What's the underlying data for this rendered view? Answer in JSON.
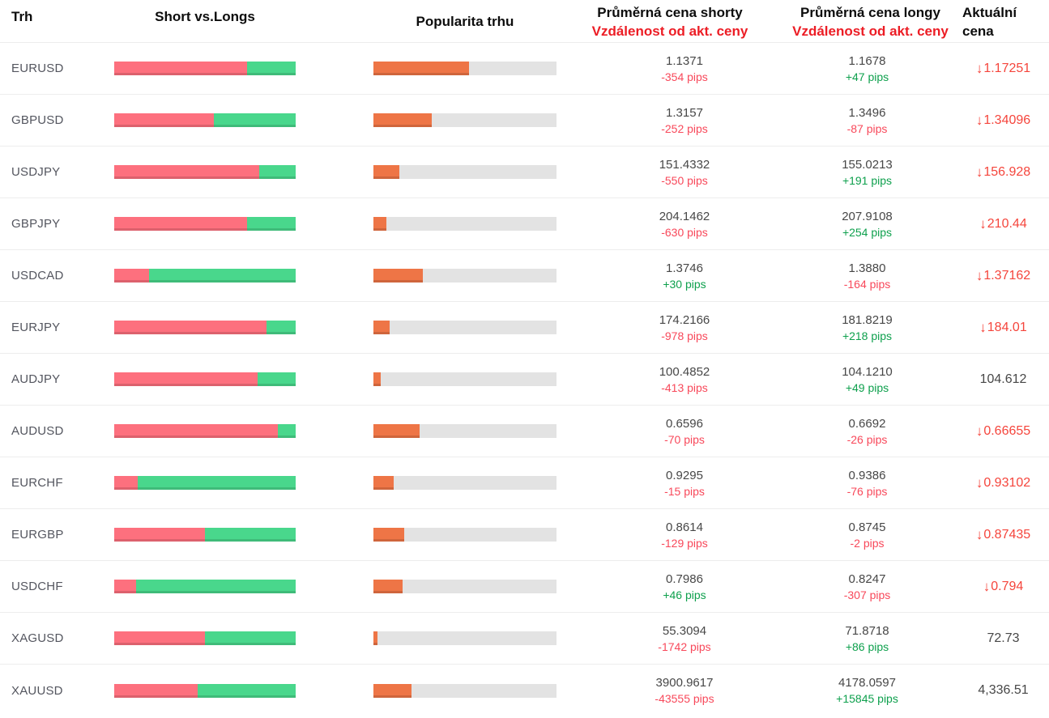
{
  "header": {
    "trh": "Trh",
    "short_vs_longs": "Short vs.Longs",
    "popularita": "Popularita trhu",
    "shorts_line1": "Průměrná cena shorty",
    "shorts_line2": "Vzdálenost od akt. ceny",
    "longs_line1": "Průměrná cena longy",
    "longs_line2": "Vzdálenost od akt. ceny",
    "aktualni_line1": "Aktuální",
    "aktualni_line2": "cena"
  },
  "icons": {
    "down_arrow": "↓"
  },
  "colors": {
    "bar_short_red": "#fd707e",
    "bar_long_green": "#49d78c",
    "bar_popularity_orange": "#ee7546",
    "bar_track_gray": "#e3e3e3",
    "pips_negative": "#f8485a",
    "pips_positive": "#0ea04d",
    "header_red": "#ec1d25",
    "current_price_red": "#f5453c",
    "price_gray": "#474747"
  },
  "rows": [
    {
      "pair": "EURUSD",
      "short_pct": 73,
      "long_pct": 27,
      "popularity_pct": 52,
      "short_price": "1.1371",
      "short_pips": "-354 pips",
      "short_dir": "neg",
      "long_price": "1.1678",
      "long_pips": "+47 pips",
      "long_dir": "pos",
      "current": "1.17251",
      "current_dir": "down"
    },
    {
      "pair": "GBPUSD",
      "short_pct": 55,
      "long_pct": 45,
      "popularity_pct": 32,
      "short_price": "1.3157",
      "short_pips": "-252 pips",
      "short_dir": "neg",
      "long_price": "1.3496",
      "long_pips": "-87 pips",
      "long_dir": "neg",
      "current": "1.34096",
      "current_dir": "down"
    },
    {
      "pair": "USDJPY",
      "short_pct": 80,
      "long_pct": 20,
      "popularity_pct": 14,
      "short_price": "151.4332",
      "short_pips": "-550 pips",
      "short_dir": "neg",
      "long_price": "155.0213",
      "long_pips": "+191 pips",
      "long_dir": "pos",
      "current": "156.928",
      "current_dir": "down"
    },
    {
      "pair": "GBPJPY",
      "short_pct": 73,
      "long_pct": 27,
      "popularity_pct": 7,
      "short_price": "204.1462",
      "short_pips": "-630 pips",
      "short_dir": "neg",
      "long_price": "207.9108",
      "long_pips": "+254 pips",
      "long_dir": "pos",
      "current": "210.44",
      "current_dir": "down"
    },
    {
      "pair": "USDCAD",
      "short_pct": 19,
      "long_pct": 81,
      "popularity_pct": 27,
      "short_price": "1.3746",
      "short_pips": "+30 pips",
      "short_dir": "pos",
      "long_price": "1.3880",
      "long_pips": "-164 pips",
      "long_dir": "neg",
      "current": "1.37162",
      "current_dir": "down"
    },
    {
      "pair": "EURJPY",
      "short_pct": 84,
      "long_pct": 16,
      "popularity_pct": 9,
      "short_price": "174.2166",
      "short_pips": "-978 pips",
      "short_dir": "neg",
      "long_price": "181.8219",
      "long_pips": "+218 pips",
      "long_dir": "pos",
      "current": "184.01",
      "current_dir": "down"
    },
    {
      "pair": "AUDJPY",
      "short_pct": 79,
      "long_pct": 21,
      "popularity_pct": 4,
      "short_price": "100.4852",
      "short_pips": "-413 pips",
      "short_dir": "neg",
      "long_price": "104.1210",
      "long_pips": "+49 pips",
      "long_dir": "pos",
      "current": "104.612",
      "current_dir": "flat"
    },
    {
      "pair": "AUDUSD",
      "short_pct": 90,
      "long_pct": 10,
      "popularity_pct": 25,
      "short_price": "0.6596",
      "short_pips": "-70 pips",
      "short_dir": "neg",
      "long_price": "0.6692",
      "long_pips": "-26 pips",
      "long_dir": "neg",
      "current": "0.66655",
      "current_dir": "down"
    },
    {
      "pair": "EURCHF",
      "short_pct": 13,
      "long_pct": 87,
      "popularity_pct": 11,
      "short_price": "0.9295",
      "short_pips": "-15 pips",
      "short_dir": "neg",
      "long_price": "0.9386",
      "long_pips": "-76 pips",
      "long_dir": "neg",
      "current": "0.93102",
      "current_dir": "down"
    },
    {
      "pair": "EURGBP",
      "short_pct": 50,
      "long_pct": 50,
      "popularity_pct": 17,
      "short_price": "0.8614",
      "short_pips": "-129 pips",
      "short_dir": "neg",
      "long_price": "0.8745",
      "long_pips": "-2 pips",
      "long_dir": "neg",
      "current": "0.87435",
      "current_dir": "down"
    },
    {
      "pair": "USDCHF",
      "short_pct": 12,
      "long_pct": 88,
      "popularity_pct": 16,
      "short_price": "0.7986",
      "short_pips": "+46 pips",
      "short_dir": "pos",
      "long_price": "0.8247",
      "long_pips": "-307 pips",
      "long_dir": "neg",
      "current": "0.794",
      "current_dir": "down"
    },
    {
      "pair": "XAGUSD",
      "short_pct": 50,
      "long_pct": 50,
      "popularity_pct": 2,
      "short_price": "55.3094",
      "short_pips": "-1742 pips",
      "short_dir": "neg",
      "long_price": "71.8718",
      "long_pips": "+86 pips",
      "long_dir": "pos",
      "current": "72.73",
      "current_dir": "flat"
    },
    {
      "pair": "XAUUSD",
      "short_pct": 46,
      "long_pct": 54,
      "popularity_pct": 21,
      "short_price": "3900.9617",
      "short_pips": "-43555 pips",
      "short_dir": "neg",
      "long_price": "4178.0597",
      "long_pips": "+15845 pips",
      "long_dir": "pos",
      "current": "4,336.51",
      "current_dir": "flat"
    }
  ]
}
